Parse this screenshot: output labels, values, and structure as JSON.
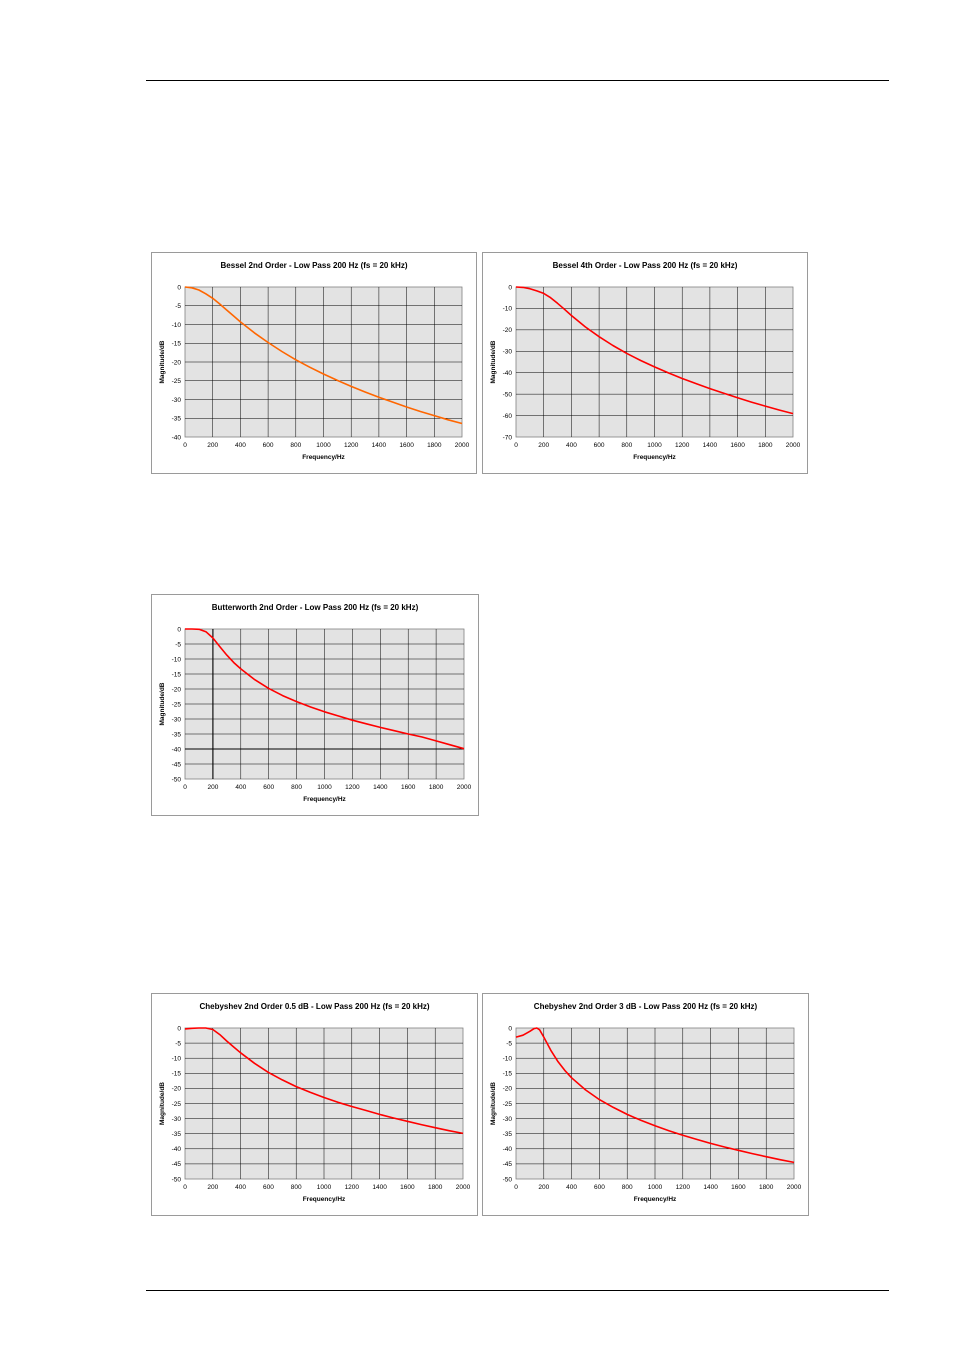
{
  "chart_data": [
    {
      "type": "line",
      "title": "Bessel 2nd Order - Low Pass 200 Hz  (fs = 20 kHz)",
      "xlabel": "Frequency/Hz",
      "ylabel": "Magnitude/dB",
      "xlim": [
        0,
        2000
      ],
      "ylim": [
        -40,
        0
      ],
      "x_ticks": [
        0,
        200,
        400,
        600,
        800,
        1000,
        1200,
        1400,
        1600,
        1800,
        2000
      ],
      "y_ticks": [
        0,
        -5,
        -10,
        -15,
        -20,
        -25,
        -30,
        -35,
        -40
      ],
      "grid": true,
      "legend": "none",
      "line_color": "#ff6600",
      "series": [
        {
          "x": [
            0,
            50,
            100,
            150,
            200,
            250,
            300,
            350,
            400,
            500,
            600,
            700,
            800,
            900,
            1000,
            1100,
            1200,
            1300,
            1400,
            1500,
            1600,
            1700,
            1800,
            1900,
            2000
          ],
          "values": [
            0,
            -0.2,
            -0.8,
            -1.8,
            -3.0,
            -4.5,
            -6.1,
            -7.7,
            -9.3,
            -12.2,
            -14.8,
            -17.2,
            -19.4,
            -21.4,
            -23.2,
            -24.9,
            -26.5,
            -28.0,
            -29.4,
            -30.7,
            -32.0,
            -33.2,
            -34.3,
            -35.4,
            -36.4
          ]
        }
      ]
    },
    {
      "type": "line",
      "title": "Bessel 4th Order - Low Pass 200 Hz  (fs = 20 kHz)",
      "xlabel": "Frequency/Hz",
      "ylabel": "Magnitude/dB",
      "xlim": [
        0,
        2000
      ],
      "ylim": [
        -70,
        0
      ],
      "x_ticks": [
        0,
        200,
        400,
        600,
        800,
        1000,
        1200,
        1400,
        1600,
        1800,
        2000
      ],
      "y_ticks": [
        0,
        -10,
        -20,
        -30,
        -40,
        -50,
        -60,
        -70
      ],
      "grid": true,
      "legend": "none",
      "line_color": "#ff0000",
      "series": [
        {
          "x": [
            0,
            50,
            100,
            150,
            200,
            250,
            300,
            350,
            400,
            500,
            600,
            700,
            800,
            900,
            1000,
            1100,
            1200,
            1300,
            1400,
            1500,
            1600,
            1700,
            1800,
            1900,
            2000
          ],
          "values": [
            0,
            -0.2,
            -0.8,
            -1.8,
            -3.0,
            -5.0,
            -7.6,
            -10.4,
            -13.3,
            -18.6,
            -23.2,
            -27.3,
            -31.0,
            -34.3,
            -37.3,
            -40.1,
            -42.7,
            -45.1,
            -47.4,
            -49.6,
            -51.7,
            -53.7,
            -55.6,
            -57.4,
            -59.1
          ]
        }
      ]
    },
    {
      "type": "line",
      "title": "Butterworth 2nd Order - Low Pass 200 Hz  (fs = 20 kHz)",
      "xlabel": "Frequency/Hz",
      "ylabel": "Magnitude/dB",
      "xlim": [
        0,
        2000
      ],
      "ylim": [
        -50,
        0
      ],
      "x_ticks": [
        0,
        200,
        400,
        600,
        800,
        1000,
        1200,
        1400,
        1600,
        1800,
        2000
      ],
      "y_ticks": [
        0,
        -5,
        -10,
        -15,
        -20,
        -25,
        -30,
        -35,
        -40,
        -45,
        -50
      ],
      "grid": true,
      "legend": "none",
      "line_color": "#ff0000",
      "marker_lines": {
        "x": 200,
        "y": -40
      },
      "series": [
        {
          "x": [
            0,
            50,
            100,
            150,
            200,
            250,
            300,
            350,
            400,
            500,
            600,
            700,
            800,
            900,
            1000,
            1100,
            1200,
            1300,
            1400,
            1500,
            1600,
            1700,
            1800,
            1900,
            2000
          ],
          "values": [
            0,
            0,
            -0.1,
            -0.9,
            -3.0,
            -5.9,
            -8.7,
            -11.2,
            -13.3,
            -16.9,
            -19.8,
            -22.2,
            -24.2,
            -26.0,
            -27.6,
            -29.0,
            -30.4,
            -31.6,
            -32.8,
            -33.9,
            -35.0,
            -36.0,
            -37.3,
            -38.6,
            -39.9
          ]
        }
      ]
    },
    {
      "type": "line",
      "title": "Chebyshev 2nd Order 0.5 dB - Low Pass 200 Hz  (fs = 20 kHz)",
      "xlabel": "Frequency/Hz",
      "ylabel": "Magnitude/dB",
      "xlim": [
        0,
        2000
      ],
      "ylim": [
        -50,
        0
      ],
      "x_ticks": [
        0,
        200,
        400,
        600,
        800,
        1000,
        1200,
        1400,
        1600,
        1800,
        2000
      ],
      "y_ticks": [
        0,
        -5,
        -10,
        -15,
        -20,
        -25,
        -30,
        -35,
        -40,
        -45,
        -50
      ],
      "grid": true,
      "legend": "none",
      "line_color": "#ff0000",
      "series": [
        {
          "x": [
            0,
            50,
            100,
            150,
            200,
            250,
            300,
            350,
            400,
            500,
            600,
            700,
            800,
            900,
            1000,
            1100,
            1200,
            1300,
            1400,
            1500,
            1600,
            1700,
            1800,
            1900,
            2000
          ],
          "values": [
            -0.3,
            -0.1,
            0,
            0,
            -0.5,
            -2.2,
            -4.3,
            -6.3,
            -8.2,
            -11.7,
            -14.7,
            -17.2,
            -19.4,
            -21.3,
            -23.0,
            -24.6,
            -26.0,
            -27.3,
            -28.6,
            -29.8,
            -30.9,
            -32.0,
            -33.0,
            -34.0,
            -34.9
          ]
        }
      ]
    },
    {
      "type": "line",
      "title": "Chebyshev 2nd Order 3 dB - Low Pass 200 Hz  (fs = 20 kHz)",
      "xlabel": "Frequency/Hz",
      "ylabel": "Magnitude/dB",
      "xlim": [
        0,
        2000
      ],
      "ylim": [
        -50,
        0
      ],
      "x_ticks": [
        0,
        200,
        400,
        600,
        800,
        1000,
        1200,
        1400,
        1600,
        1800,
        2000
      ],
      "y_ticks": [
        0,
        -5,
        -10,
        -15,
        -20,
        -25,
        -30,
        -35,
        -40,
        -45,
        -50
      ],
      "grid": true,
      "legend": "none",
      "line_color": "#ff0000",
      "series": [
        {
          "x": [
            0,
            50,
            100,
            130,
            150,
            170,
            200,
            250,
            300,
            350,
            400,
            500,
            600,
            700,
            800,
            900,
            1000,
            1100,
            1200,
            1300,
            1400,
            1500,
            1600,
            1700,
            1800,
            1900,
            2000
          ],
          "values": [
            -3.0,
            -2.4,
            -1.1,
            -0.2,
            0,
            -0.6,
            -3.0,
            -7.4,
            -11.0,
            -14.0,
            -16.5,
            -20.5,
            -23.7,
            -26.3,
            -28.6,
            -30.6,
            -32.4,
            -34.0,
            -35.5,
            -36.9,
            -38.2,
            -39.4,
            -40.5,
            -41.6,
            -42.6,
            -43.6,
            -44.5
          ]
        }
      ]
    }
  ]
}
